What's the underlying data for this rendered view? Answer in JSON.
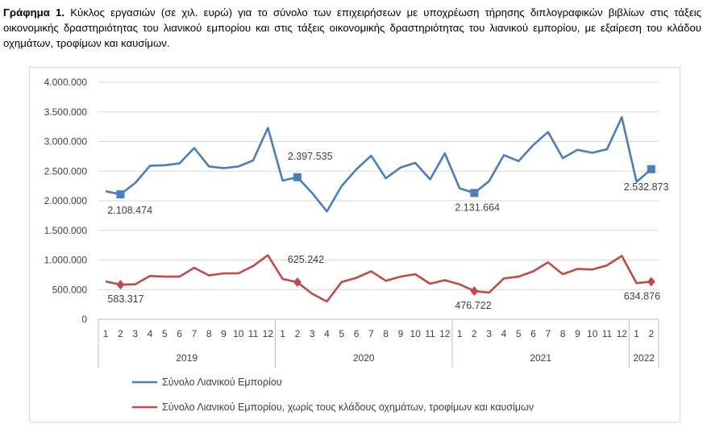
{
  "caption": {
    "label": "Γράφημα 1.",
    "text": "Κύκλος εργασιών (σε χιλ. ευρώ) για το σύνολο των επιχειρήσεων με υποχρέωση τήρησης διπλογραφικών βιβλίων στις τάξεις οικονομικής δραστηριότητας του λιανικού εμπορίου και στις τάξεις οικονομικής δραστηριότητας του λιανικού εμπορίου, με εξαίρεση του κλάδου οχημάτων, τροφίμων και καυσίμων."
  },
  "chart_data": {
    "type": "line",
    "ylim": [
      0,
      4000000
    ],
    "yticks": [
      0,
      500000,
      1000000,
      1500000,
      2000000,
      2500000,
      3000000,
      3500000,
      4000000
    ],
    "ytick_labels": [
      "0",
      "500.000",
      "1.000.000",
      "1.500.000",
      "2.000.000",
      "2.500.000",
      "3.000.000",
      "3.500.000",
      "4.000.000"
    ],
    "grid": true,
    "legend_position": "bottom",
    "x_months": [
      "1",
      "2",
      "3",
      "4",
      "5",
      "6",
      "7",
      "8",
      "9",
      "10",
      "11",
      "12",
      "1",
      "2",
      "3",
      "4",
      "5",
      "6",
      "7",
      "8",
      "9",
      "10",
      "11",
      "12",
      "1",
      "2",
      "3",
      "4",
      "5",
      "6",
      "7",
      "8",
      "9",
      "10",
      "11",
      "12",
      "1",
      "2"
    ],
    "x_years": [
      {
        "label": "2019",
        "count": 12
      },
      {
        "label": "2020",
        "count": 12
      },
      {
        "label": "2021",
        "count": 12
      },
      {
        "label": "2022",
        "count": 2
      }
    ],
    "series": [
      {
        "name": "Σύνολο Λιανικού Εμπορίου",
        "color": "#4a7ebb",
        "marker": "square",
        "values": [
          2160000,
          2108474,
          2300000,
          2590000,
          2600000,
          2630000,
          2890000,
          2580000,
          2550000,
          2580000,
          2680000,
          3230000,
          2340000,
          2397535,
          2130000,
          1820000,
          2250000,
          2530000,
          2760000,
          2380000,
          2560000,
          2640000,
          2360000,
          2800000,
          2210000,
          2131664,
          2330000,
          2770000,
          2670000,
          2940000,
          3160000,
          2720000,
          2860000,
          2810000,
          2870000,
          3410000,
          2320000,
          2532873
        ],
        "labels": [
          {
            "index": 1,
            "text": "2.108.474"
          },
          {
            "index": 13,
            "text": "2.397.535"
          },
          {
            "index": 25,
            "text": "2.131.664"
          },
          {
            "index": 37,
            "text": "2.532.873"
          }
        ]
      },
      {
        "name": "Σύνολο Λιανικού Εμπορίου, χωρίς τους κλάδους οχημάτων, τροφίμων και καυσίμων",
        "color": "#be4b48",
        "marker": "diamond",
        "values": [
          640000,
          583317,
          590000,
          730000,
          720000,
          720000,
          870000,
          740000,
          775000,
          775000,
          900000,
          1080000,
          680000,
          625242,
          430000,
          300000,
          630000,
          700000,
          810000,
          650000,
          720000,
          760000,
          600000,
          660000,
          590000,
          476722,
          450000,
          690000,
          720000,
          810000,
          960000,
          760000,
          850000,
          840000,
          910000,
          1070000,
          610000,
          634876
        ],
        "labels": [
          {
            "index": 1,
            "text": "583.317"
          },
          {
            "index": 13,
            "text": "625.242"
          },
          {
            "index": 25,
            "text": "476.722"
          },
          {
            "index": 37,
            "text": "634.876"
          }
        ]
      }
    ]
  }
}
